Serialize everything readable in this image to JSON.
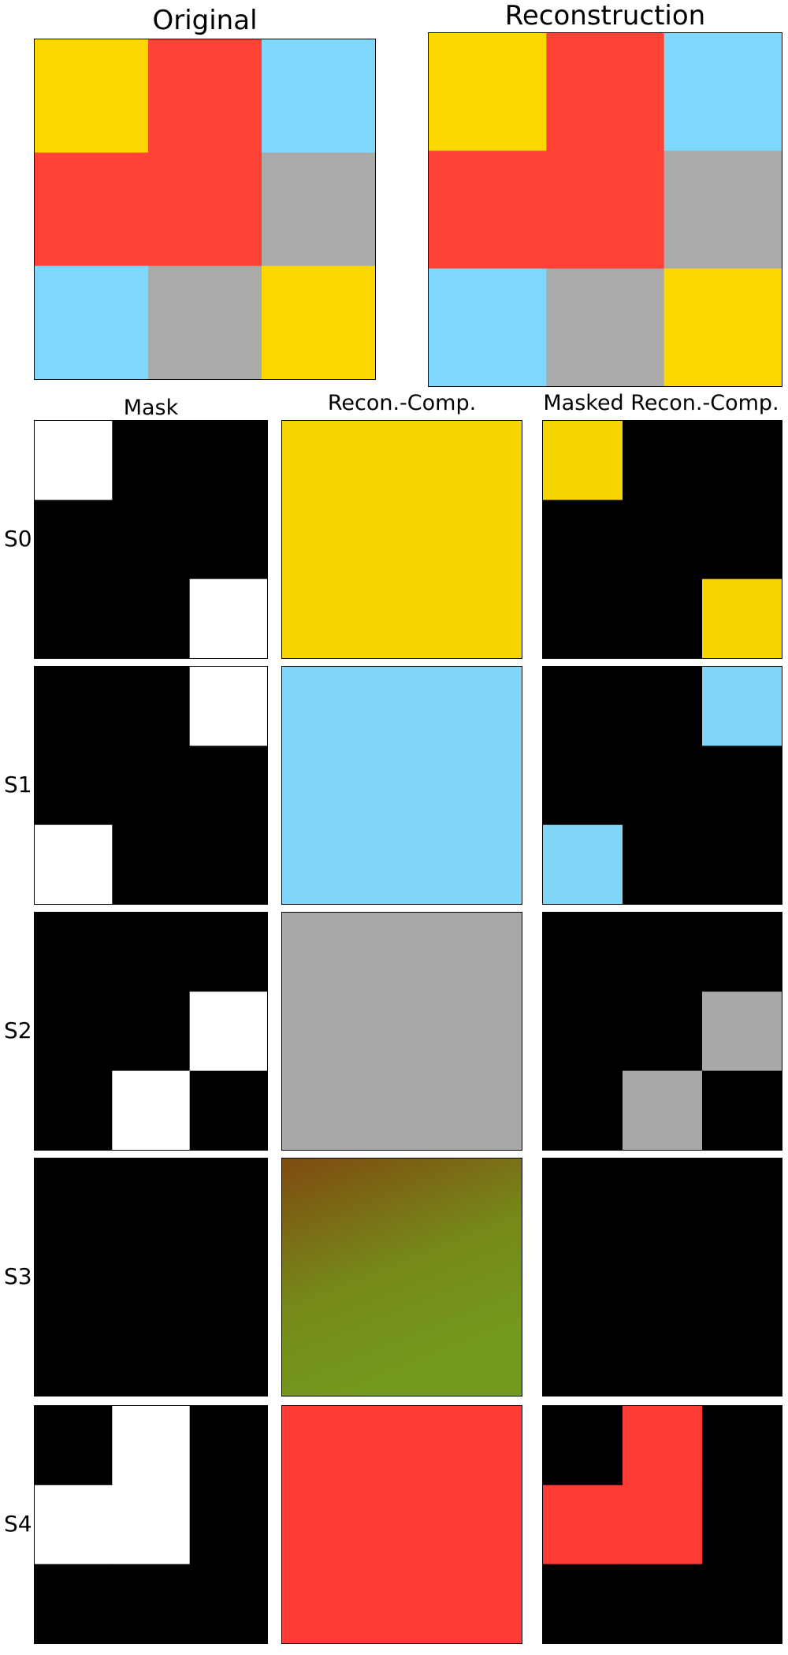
{
  "titles": {
    "original": "Original",
    "reconstruction": "Reconstruction",
    "mask": "Mask",
    "recon_comp": "Recon.-Comp.",
    "masked_recon_comp": "Masked Recon.-Comp."
  },
  "colors": {
    "yellow": "#fcd700",
    "red": "#ff4136",
    "light_blue": "#7fd9ff",
    "gray": "#aaaaaa",
    "olive_top": "#7f4a10",
    "olive_bottom": "#739a1c"
  },
  "grid_legend": "3x3 grid of colored cells; row-major labels Y=yellow, R=red, B=light blue, G=gray",
  "original_grid": [
    "Y",
    "R",
    "B",
    "R",
    "R",
    "G",
    "B",
    "G",
    "Y"
  ],
  "slots": [
    {
      "label": "S0",
      "component_color": "#f5d400",
      "mask": [
        1,
        0,
        0,
        0,
        0,
        0,
        0,
        0,
        1
      ]
    },
    {
      "label": "S1",
      "component_color": "#7fd6f9",
      "mask": [
        0,
        0,
        1,
        0,
        0,
        0,
        1,
        0,
        0
      ]
    },
    {
      "label": "S2",
      "component_color": "#a8a8a8",
      "mask": [
        0,
        0,
        0,
        0,
        0,
        1,
        0,
        1,
        0
      ]
    },
    {
      "label": "S3",
      "component_color": "gradient",
      "mask": [
        0,
        0,
        0,
        0,
        0,
        0,
        0,
        0,
        0
      ]
    },
    {
      "label": "S4",
      "component_color": "#ff3b36",
      "mask": [
        0,
        1,
        0,
        1,
        1,
        0,
        0,
        0,
        0
      ]
    }
  ]
}
